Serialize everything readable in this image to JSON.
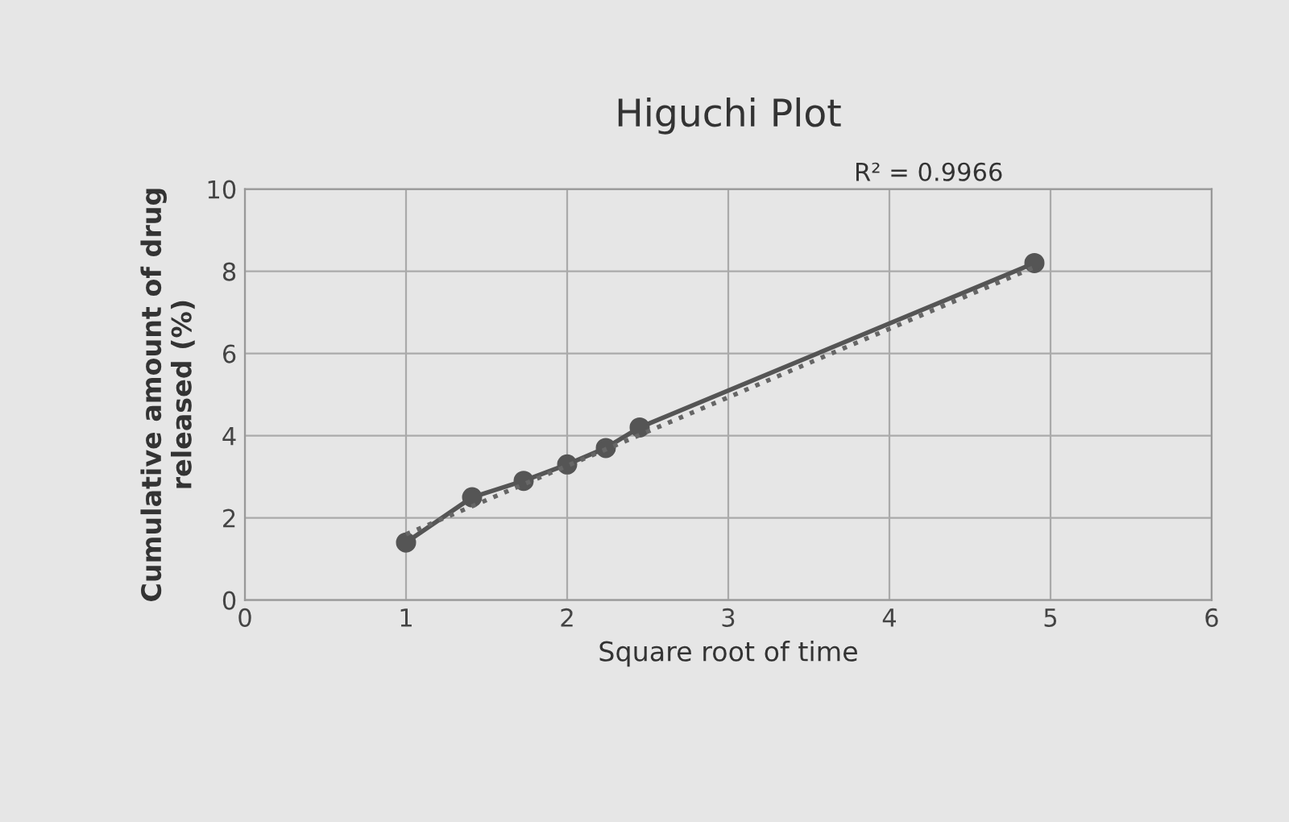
{
  "chart_data": {
    "type": "line",
    "title": "Higuchi Plot",
    "xlabel": "Square root of time",
    "ylabel": "Cumulative amount of drug\nreleased (%)",
    "annotations": [
      "R² = 0.9966"
    ],
    "series": [
      {
        "color": "#555555",
        "marker": "circle",
        "line_style": "solid",
        "x": [
          1,
          1.41,
          1.73,
          2,
          2.24,
          2.45,
          4.9
        ],
        "values": [
          1.4,
          2.5,
          2.9,
          3.3,
          3.7,
          4.2,
          8.2
        ]
      },
      {
        "color": "#666666",
        "marker": "none",
        "line_style": "dotted",
        "x": [
          1,
          4.9
        ],
        "values": [
          1.6,
          8.1
        ]
      }
    ],
    "xlim": [
      0,
      6
    ],
    "ylim": [
      0,
      10
    ],
    "xticks": [
      0,
      1,
      2,
      3,
      4,
      5,
      6
    ],
    "yticks": [
      0,
      2,
      4,
      6,
      8,
      10
    ],
    "grid": true,
    "legend": false
  }
}
